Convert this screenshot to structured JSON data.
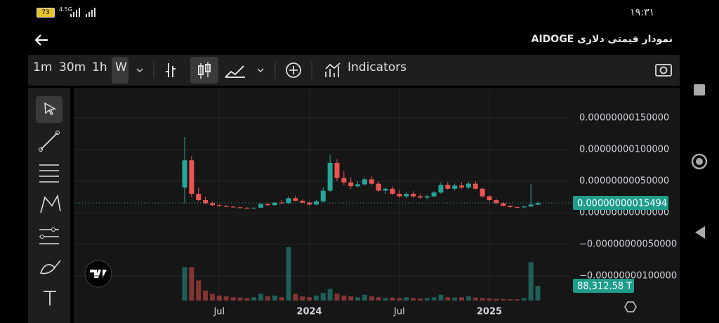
{
  "statusbar": {
    "time": "١٩:٣١",
    "network": "4.5G",
    "battery": "73"
  },
  "header": {
    "title": "نمودار قیمتی دلاری AIDOGE"
  },
  "toolbar": {
    "intervals": [
      "1m",
      "30m",
      "1h",
      "W"
    ],
    "indicators": "Indicators"
  },
  "chart_data": {
    "type": "candlestick",
    "categories": [
      null,
      null,
      null,
      null,
      null,
      "Jul",
      null,
      null,
      null,
      null,
      null,
      null,
      null,
      null,
      null,
      null,
      null,
      null,
      "2024",
      null,
      null,
      null,
      null,
      null,
      null,
      null,
      null,
      null,
      null,
      null,
      null,
      "Jul",
      null,
      null,
      null,
      null,
      null,
      null,
      null,
      null,
      null,
      null,
      null,
      null,
      "2025",
      null,
      null,
      null,
      null,
      null,
      null,
      null
    ],
    "candles": {
      "open": [
        4e-10,
        8.3e-10,
        3e-10,
        2e-10,
        1.5e-10,
        1.2e-10,
        1.1e-10,
        9.5e-11,
        8.5e-11,
        7.5e-11,
        7e-11,
        8e-11,
        1.4e-10,
        1.2e-10,
        1.6e-10,
        1.5e-10,
        2.3e-10,
        1.9e-10,
        1.6e-10,
        1.3e-10,
        1.8e-10,
        3.5e-10,
        7.9e-10,
        5.5e-10,
        4.8e-10,
        4.2e-10,
        4.5e-10,
        5.3e-10,
        4.6e-10,
        3.5e-10,
        3.8e-10,
        3e-10,
        2.6e-10,
        3e-10,
        2.6e-10,
        2.4e-10,
        2.6e-10,
        3.2e-10,
        4.4e-10,
        3.8e-10,
        4.3e-10,
        4e-10,
        4.6e-10,
        3.8e-10,
        2.6e-10,
        2e-10,
        1.5e-10,
        1.1e-10,
        9e-11,
        8.5e-11,
        1e-10,
        1.3e-10
      ],
      "high": [
        1.2e-09,
        9e-10,
        4e-10,
        2.5e-10,
        1.8e-10,
        1.4e-10,
        1.2e-10,
        1.1e-10,
        9.5e-11,
        9e-11,
        8e-11,
        1.5e-10,
        1.6e-10,
        1.7e-10,
        2e-10,
        2.6e-10,
        2.7e-10,
        2.2e-10,
        1.8e-10,
        2e-10,
        4e-10,
        9.2e-10,
        8.5e-10,
        6.6e-10,
        5.6e-10,
        5e-10,
        5.5e-10,
        5.8e-10,
        5e-10,
        4e-10,
        4.2e-10,
        3.6e-10,
        3.2e-10,
        3.4e-10,
        3e-10,
        2.8e-10,
        3.4e-10,
        4.8e-10,
        4.9e-10,
        4.6e-10,
        4.8e-10,
        4.9e-10,
        5e-10,
        4e-10,
        2.8e-10,
        2.2e-10,
        1.7e-10,
        1.2e-10,
        1e-10,
        1.1e-10,
        4.6e-10,
        1.8e-10
      ],
      "low": [
        1.5e-10,
        2.5e-10,
        1.8e-10,
        1.4e-10,
        1.1e-10,
        1e-10,
        9e-11,
        8e-11,
        7e-11,
        6.5e-11,
        6e-11,
        7.5e-11,
        1.1e-10,
        1.1e-10,
        1.4e-10,
        1.4e-10,
        1.8e-10,
        1.5e-10,
        1.2e-10,
        1.2e-10,
        1.7e-10,
        3.3e-10,
        5e-10,
        4.4e-10,
        3.8e-10,
        3.9e-10,
        4.3e-10,
        4.4e-10,
        3.3e-10,
        3e-10,
        2.8e-10,
        2.4e-10,
        2.3e-10,
        2.4e-10,
        2.2e-10,
        2.1e-10,
        2.5e-10,
        3e-10,
        3.6e-10,
        3.5e-10,
        3.8e-10,
        3.8e-10,
        3.6e-10,
        2.4e-10,
        1.8e-10,
        1.4e-10,
        1e-10,
        8e-11,
        7e-11,
        7e-11,
        9e-11,
        1.2e-10
      ],
      "close": [
        8.3e-10,
        3e-10,
        2e-10,
        1.5e-10,
        1.2e-10,
        1.1e-10,
        9.5e-11,
        8.5e-11,
        7.5e-11,
        7e-11,
        8e-11,
        1.4e-10,
        1.2e-10,
        1.6e-10,
        1.5e-10,
        2.3e-10,
        1.9e-10,
        1.6e-10,
        1.3e-10,
        1.8e-10,
        3.5e-10,
        7.9e-10,
        5.5e-10,
        4.8e-10,
        4.2e-10,
        4.5e-10,
        5.3e-10,
        4.6e-10,
        3.5e-10,
        3.8e-10,
        3e-10,
        2.6e-10,
        3e-10,
        2.6e-10,
        2.4e-10,
        2.6e-10,
        3.2e-10,
        4.4e-10,
        3.8e-10,
        4.3e-10,
        4e-10,
        4.6e-10,
        3.8e-10,
        2.6e-10,
        2e-10,
        1.5e-10,
        1.1e-10,
        9e-11,
        8.5e-11,
        1e-10,
        1.3e-10,
        1.5494e-10
      ]
    },
    "up_color": "#26a69a",
    "down_color": "#ef5350",
    "volume": [
      200000,
      200000,
      120000,
      60000,
      40000,
      30000,
      25000,
      20000,
      18000,
      15000,
      20000,
      40000,
      25000,
      30000,
      20000,
      320000,
      40000,
      25000,
      20000,
      30000,
      45000,
      70000,
      40000,
      30000,
      25000,
      20000,
      35000,
      25000,
      20000,
      15000,
      18000,
      15000,
      20000,
      15000,
      12000,
      15000,
      20000,
      35000,
      20000,
      18000,
      20000,
      25000,
      18000,
      15000,
      12000,
      10000,
      10000,
      8000,
      8000,
      15000,
      230000,
      88312.58
    ],
    "volume_label": "88,312.58 T",
    "volume_max": 320000,
    "last_price": {
      "value": 1.5494e-10,
      "label": "0.00000000015494"
    },
    "ylim": [
      -1.5e-09,
      2e-09
    ],
    "yticks": [
      {
        "value": 1.5e-09,
        "label": "0.00000000150000"
      },
      {
        "value": 1e-09,
        "label": "0.00000000100000"
      },
      {
        "value": 5e-10,
        "label": "0.00000000050000"
      },
      {
        "value": 0,
        "label": "0.00000000000000"
      },
      {
        "value": -5e-10,
        "label": "−0.00000000050000"
      },
      {
        "value": -1e-09,
        "label": "−0.00000000100000"
      }
    ],
    "grid": true
  }
}
